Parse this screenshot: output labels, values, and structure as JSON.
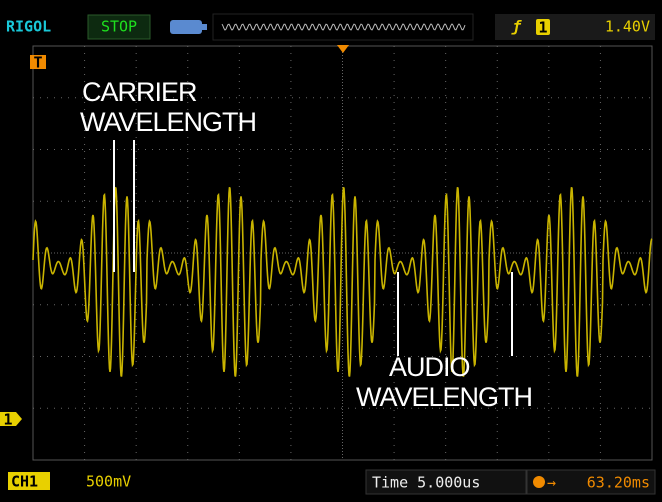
{
  "status_bar": {
    "brand": "RIGOL",
    "run_state": "STOP",
    "trigger_channel": "1",
    "trigger_level": "1.40V"
  },
  "markers": {
    "trigger": "T",
    "channel": "1"
  },
  "annotations": [
    {
      "lines": [
        "CARRIER",
        "WAVELENGTH"
      ]
    },
    {
      "lines": [
        "AUDIO",
        "WAVELENGTH"
      ]
    }
  ],
  "bottom_bar": {
    "channel": "CH1",
    "scale": "500mV",
    "timebase": "Time 5.000us",
    "trigger_offset": "63.20ms"
  }
}
